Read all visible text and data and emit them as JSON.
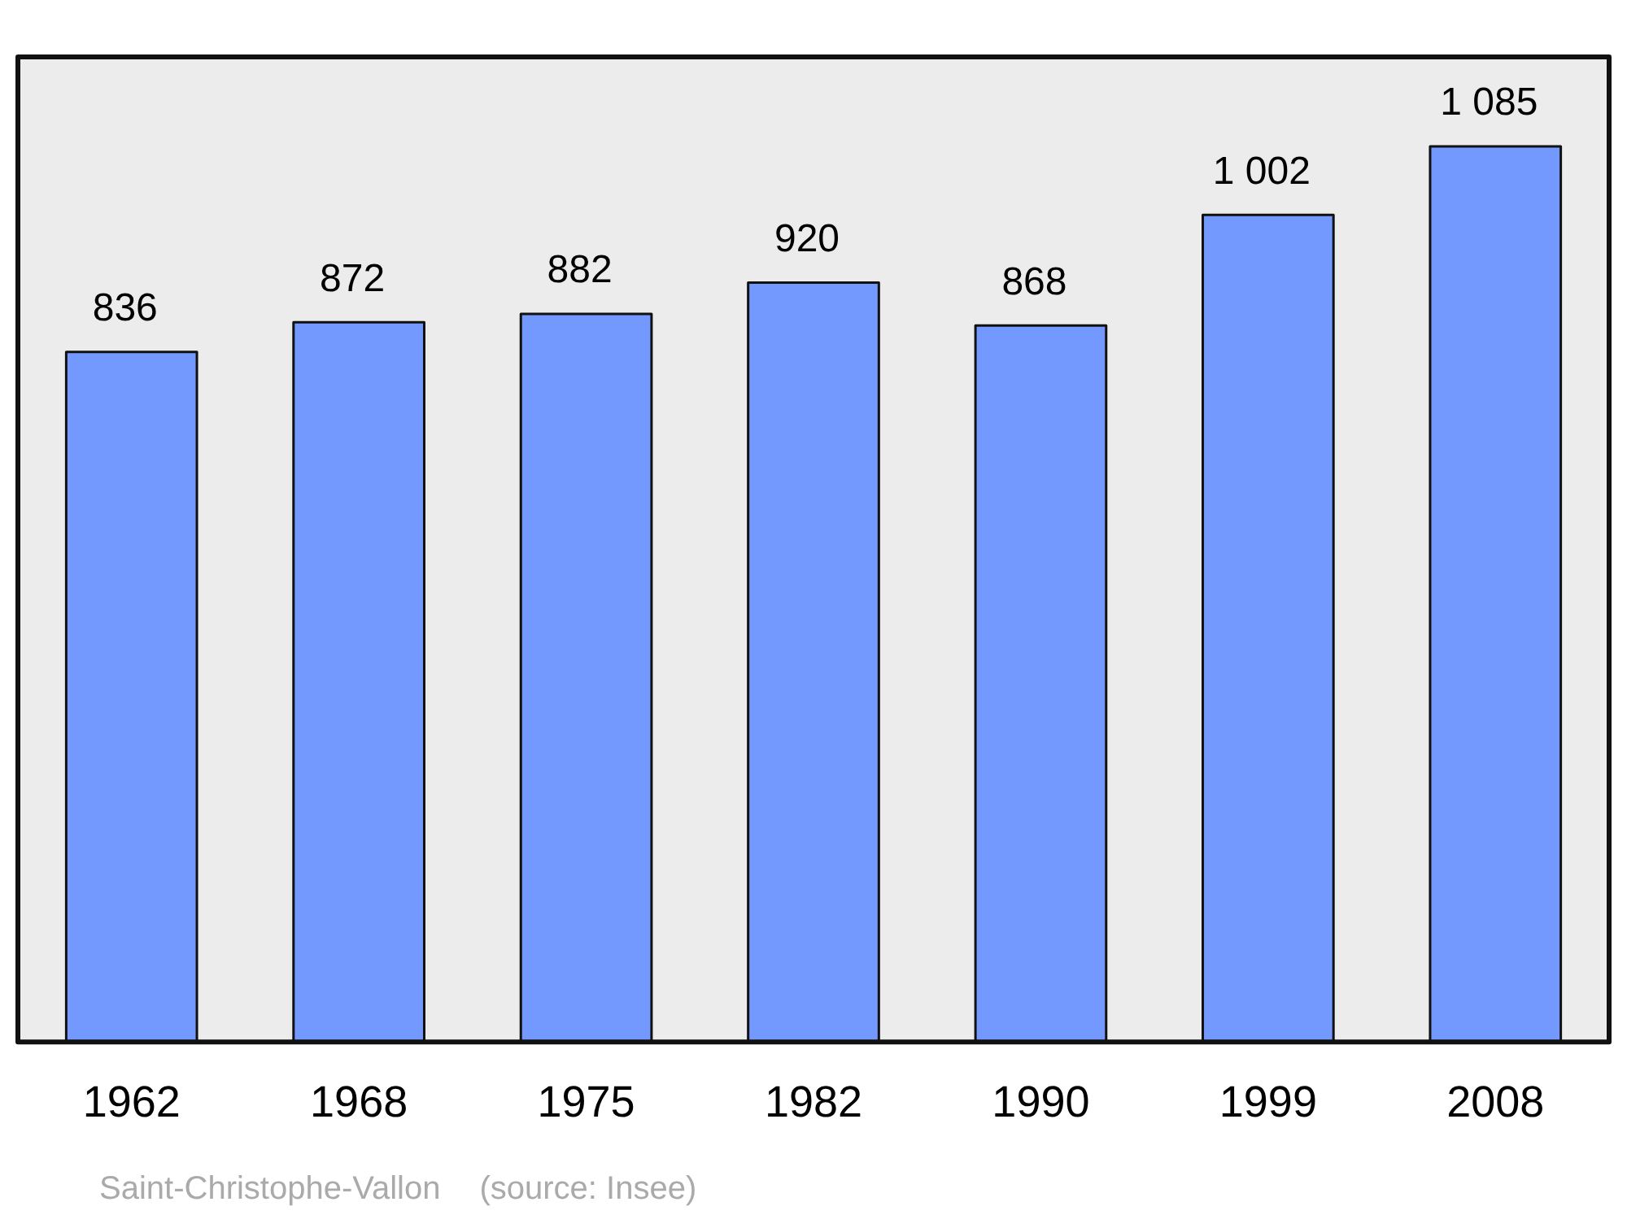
{
  "chart_data": {
    "type": "bar",
    "categories": [
      "1962",
      "1968",
      "1975",
      "1982",
      "1990",
      "1999",
      "2008"
    ],
    "values": [
      836,
      872,
      882,
      920,
      868,
      1002,
      1085
    ],
    "value_labels": [
      "836",
      "872",
      "882",
      "920",
      "868",
      "1 002",
      "1 085"
    ],
    "color": "#7399ff",
    "annotations": [
      "Saint-Christophe-Vallon",
      "(source: Insee)"
    ],
    "grid": false,
    "legend": false
  }
}
